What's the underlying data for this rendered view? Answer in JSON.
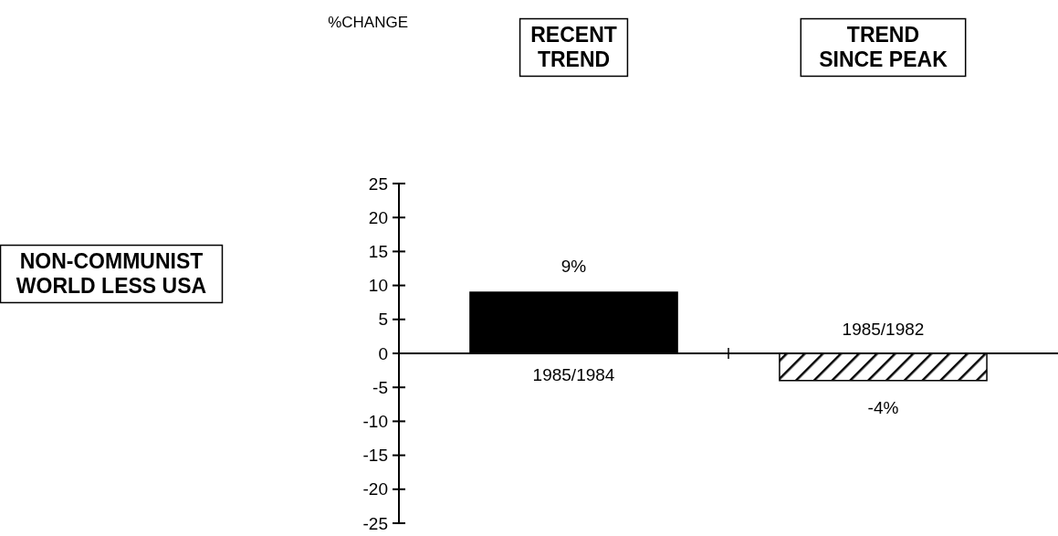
{
  "chart_data": {
    "type": "bar",
    "title": "NON-COMMUNIST\nWORLD LESS USA",
    "categories": [
      "1985/1984",
      "1985/1982"
    ],
    "values": [
      9,
      -4
    ],
    "colors": [
      "#000000",
      "#000000"
    ],
    "value_labels": [
      "9%",
      "-4%"
    ],
    "annotations": [
      "%CHANGE",
      "RECENT\nTREND",
      "TREND\nSINCE PEAK"
    ],
    "ylim": [
      -25,
      25
    ],
    "yticks": [
      -25,
      -20,
      -15,
      -10,
      -5,
      0,
      5,
      10,
      15,
      20,
      25
    ]
  }
}
